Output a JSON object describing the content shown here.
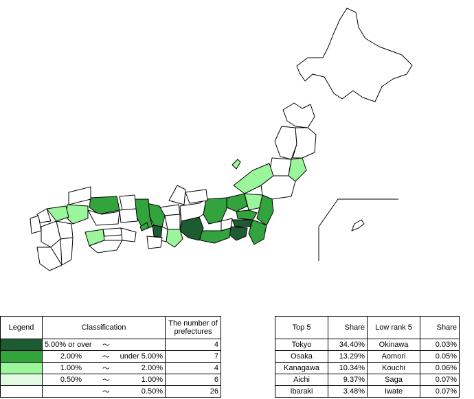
{
  "colors": {
    "tier1": "#1d5c32",
    "tier2": "#33a33e",
    "tier3": "#9bf59b",
    "tier4": "#e2f9e2",
    "tier5": "#ffffff"
  },
  "legend": {
    "headers": {
      "legend": "Legend",
      "classification": "Classification",
      "count": "The number of prefectures"
    },
    "rows": [
      {
        "color_key": "tier1",
        "from": "5.00% or over",
        "tilde": "〜",
        "to": "",
        "count": "4"
      },
      {
        "color_key": "tier2",
        "from": "2.00%",
        "tilde": "〜",
        "to": "under 5.00%",
        "count": "7"
      },
      {
        "color_key": "tier3",
        "from": "1.00%",
        "tilde": "〜",
        "to": "2.00%",
        "count": "4"
      },
      {
        "color_key": "tier4",
        "from": "0.50%",
        "tilde": "〜",
        "to": "1.00%",
        "count": "6"
      },
      {
        "color_key": "tier5",
        "from": "",
        "tilde": "〜",
        "to": "0.50%",
        "count": "26"
      }
    ]
  },
  "ranks": {
    "headers": {
      "top": "Top 5",
      "share": "Share",
      "low": "Low rank 5",
      "share2": "Share"
    },
    "rows": [
      {
        "top": "Tokyo",
        "top_share": "34.40%",
        "low": "Okinawa",
        "low_share": "0.03%"
      },
      {
        "top": "Osaka",
        "top_share": "13.29%",
        "low": "Aomori",
        "low_share": "0.05%"
      },
      {
        "top": "Kanagawa",
        "top_share": "10.34%",
        "low": "Kouchi",
        "low_share": "0.06%"
      },
      {
        "top": "Aichi",
        "top_share": "9.37%",
        "low": "Saga",
        "low_share": "0.07%"
      },
      {
        "top": "Ibaraki",
        "top_share": "3.48%",
        "low": "Iwate",
        "low_share": "0.07%"
      }
    ]
  }
}
